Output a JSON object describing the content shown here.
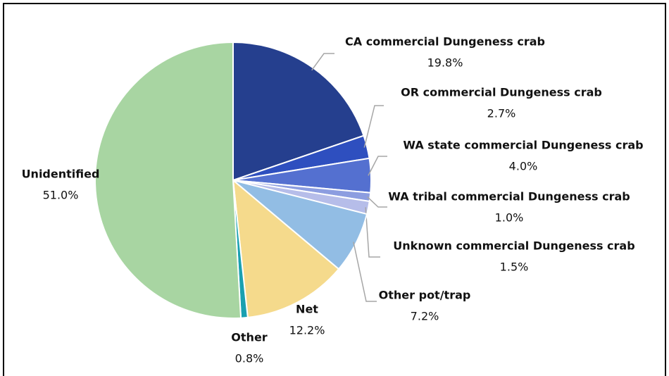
{
  "chart_data": {
    "type": "pie",
    "categories": [
      "CA commercial Dungeness crab",
      "OR commercial Dungeness crab",
      "WA state commercial Dungeness crab",
      "WA tribal commercial Dungeness crab",
      "Unknown commercial Dungeness crab",
      "Other pot/trap",
      "Net",
      "Other",
      "Unidentified"
    ],
    "values": [
      19.8,
      2.7,
      4.0,
      1.0,
      1.5,
      7.2,
      12.2,
      0.8,
      51.0
    ],
    "value_labels": [
      "19.8%",
      "2.7%",
      "4.0%",
      "1.0%",
      "1.5%",
      "7.2%",
      "12.2%",
      "0.8%",
      "51.0%"
    ],
    "colors": [
      "#253f8e",
      "#2e4fbf",
      "#5470d0",
      "#8c9de0",
      "#b6bde9",
      "#92bde4",
      "#f5da8c",
      "#1aa0b0",
      "#a8d5a2"
    ]
  }
}
